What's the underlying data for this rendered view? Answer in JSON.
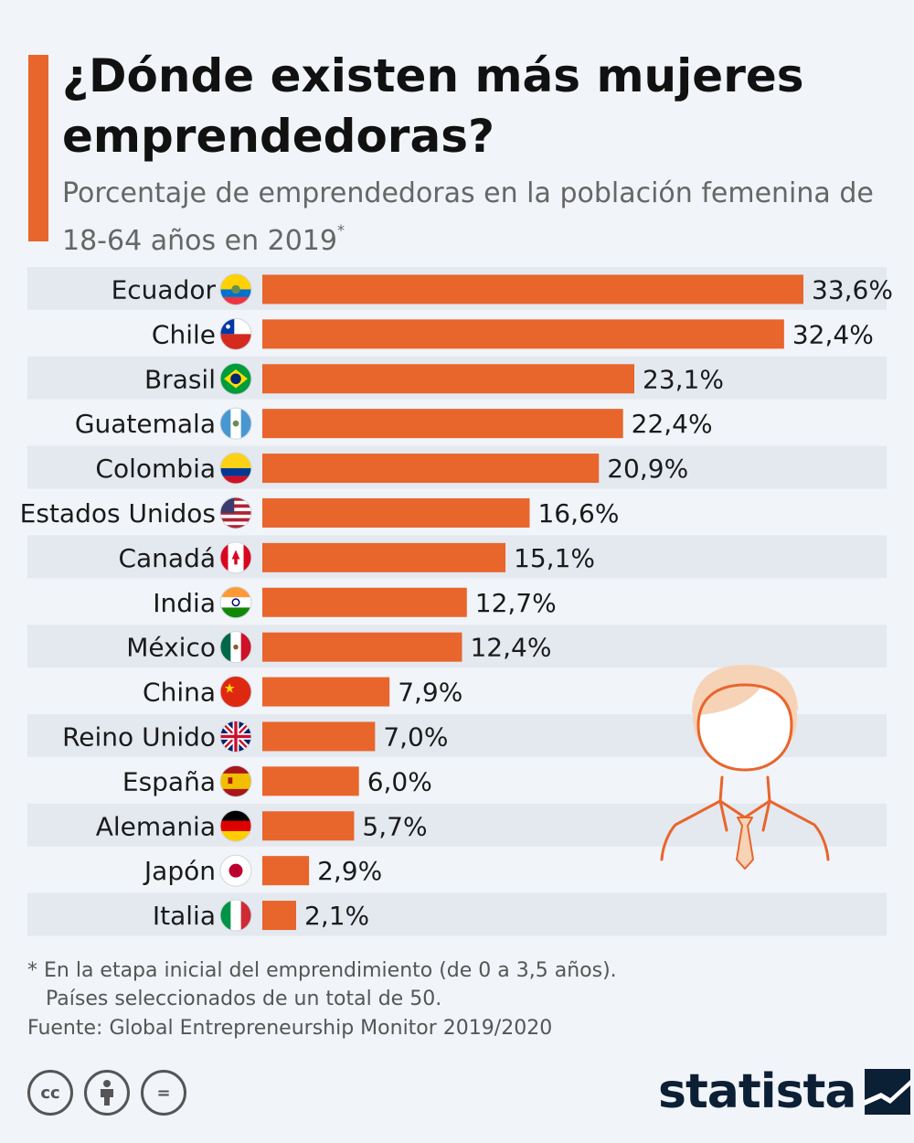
{
  "title": "¿Dónde existen más mujeres emprendedoras?",
  "subtitle": "Porcentaje de emprendedoras en la población femenina de 18-64 años en 2019",
  "subtitle_marker": "*",
  "notes": {
    "line1": "* En la etapa inicial del emprendimiento (de 0 a 3,5 años).",
    "line2": "Países seleccionados de un total de 50."
  },
  "source": "Fuente: Global Entrepreneurship Monitor 2019/2020",
  "license_icons": [
    "cc-icon",
    "by-icon",
    "nd-icon"
  ],
  "license_labels": {
    "cc": "cc",
    "nd": "="
  },
  "logo": {
    "text": "statista"
  },
  "colors": {
    "bar": "#e8652c",
    "band": "#e4e9f0",
    "accent": "#e8652c",
    "logo": "#0b1f35"
  },
  "chart_data": {
    "type": "bar",
    "orientation": "horizontal",
    "unit": "%",
    "categories": [
      "Ecuador",
      "Chile",
      "Brasil",
      "Guatemala",
      "Colombia",
      "Estados Unidos",
      "Canadá",
      "India",
      "México",
      "China",
      "Reino Unido",
      "España",
      "Alemania",
      "Japón",
      "Italia"
    ],
    "values": [
      33.6,
      32.4,
      23.1,
      22.4,
      20.9,
      16.6,
      15.1,
      12.7,
      12.4,
      7.9,
      7.0,
      6.0,
      5.7,
      2.9,
      2.1
    ],
    "labels": [
      "33,6%",
      "32,4%",
      "23,1%",
      "22,4%",
      "20,9%",
      "16,6%",
      "15,1%",
      "12,7%",
      "12,4%",
      "7,9%",
      "7,0%",
      "6,0%",
      "5,7%",
      "2,9%",
      "2,1%"
    ],
    "flags": [
      "ecuador-flag-icon",
      "chile-flag-icon",
      "brazil-flag-icon",
      "guatemala-flag-icon",
      "colombia-flag-icon",
      "usa-flag-icon",
      "canada-flag-icon",
      "india-flag-icon",
      "mexico-flag-icon",
      "china-flag-icon",
      "uk-flag-icon",
      "spain-flag-icon",
      "germany-flag-icon",
      "japan-flag-icon",
      "italy-flag-icon"
    ],
    "xlim": [
      0,
      33.6
    ],
    "grid": false,
    "legend": "none"
  }
}
